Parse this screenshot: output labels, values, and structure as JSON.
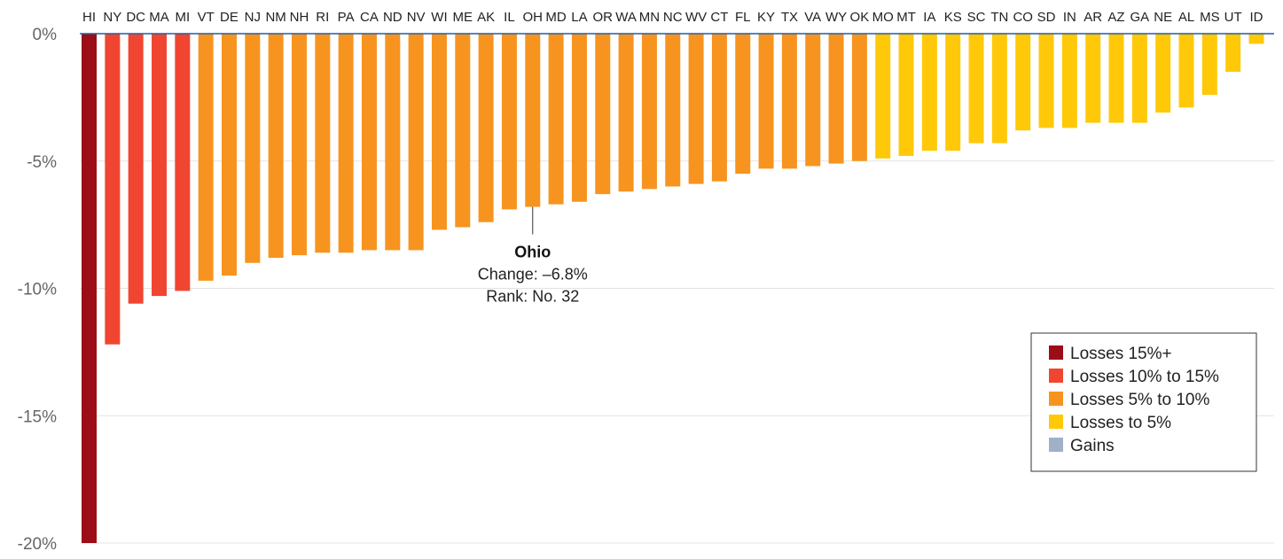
{
  "chart_data": {
    "type": "bar",
    "categories": [
      "HI",
      "NY",
      "DC",
      "MA",
      "MI",
      "VT",
      "DE",
      "NJ",
      "NM",
      "NH",
      "RI",
      "PA",
      "CA",
      "ND",
      "NV",
      "WI",
      "ME",
      "AK",
      "IL",
      "OH",
      "MD",
      "LA",
      "OR",
      "WA",
      "MN",
      "NC",
      "WV",
      "CT",
      "FL",
      "KY",
      "TX",
      "VA",
      "WY",
      "OK",
      "MO",
      "MT",
      "IA",
      "KS",
      "SC",
      "TN",
      "CO",
      "SD",
      "IN",
      "AR",
      "AZ",
      "GA",
      "NE",
      "AL",
      "MS",
      "UT",
      "ID"
    ],
    "values": [
      -20.0,
      -12.2,
      -10.6,
      -10.3,
      -10.1,
      -9.7,
      -9.5,
      -9.0,
      -8.8,
      -8.7,
      -8.6,
      -8.6,
      -8.5,
      -8.5,
      -8.5,
      -7.7,
      -7.6,
      -7.4,
      -6.9,
      -6.8,
      -6.7,
      -6.6,
      -6.3,
      -6.2,
      -6.1,
      -6.0,
      -5.9,
      -5.8,
      -5.5,
      -5.3,
      -5.3,
      -5.2,
      -5.1,
      -5.0,
      -4.9,
      -4.8,
      -4.6,
      -4.6,
      -4.3,
      -4.3,
      -3.8,
      -3.7,
      -3.7,
      -3.5,
      -3.5,
      -3.5,
      -3.1,
      -2.9,
      -2.4,
      -1.5,
      -0.4
    ],
    "bins": [
      "Losses 15%+",
      "Losses 10% to 15%",
      "Losses 10% to 15%",
      "Losses 10% to 15%",
      "Losses 10% to 15%",
      "Losses 5% to 10%",
      "Losses 5% to 10%",
      "Losses 5% to 10%",
      "Losses 5% to 10%",
      "Losses 5% to 10%",
      "Losses 5% to 10%",
      "Losses 5% to 10%",
      "Losses 5% to 10%",
      "Losses 5% to 10%",
      "Losses 5% to 10%",
      "Losses 5% to 10%",
      "Losses 5% to 10%",
      "Losses 5% to 10%",
      "Losses 5% to 10%",
      "Losses 5% to 10%",
      "Losses 5% to 10%",
      "Losses 5% to 10%",
      "Losses 5% to 10%",
      "Losses 5% to 10%",
      "Losses 5% to 10%",
      "Losses 5% to 10%",
      "Losses 5% to 10%",
      "Losses 5% to 10%",
      "Losses 5% to 10%",
      "Losses 5% to 10%",
      "Losses 5% to 10%",
      "Losses 5% to 10%",
      "Losses 5% to 10%",
      "Losses 5% to 10%",
      "Losses to 5%",
      "Losses to 5%",
      "Losses to 5%",
      "Losses to 5%",
      "Losses to 5%",
      "Losses to 5%",
      "Losses to 5%",
      "Losses to 5%",
      "Losses to 5%",
      "Losses to 5%",
      "Losses to 5%",
      "Losses to 5%",
      "Losses to 5%",
      "Losses to 5%",
      "Losses to 5%",
      "Losses to 5%",
      "Losses to 5%"
    ],
    "ylim": [
      -20,
      0
    ],
    "y_ticks": [
      0,
      -5,
      -10,
      -15,
      -20
    ],
    "y_tick_labels": [
      "0%",
      "-5%",
      "-10%",
      "-15%",
      "-20%"
    ],
    "grid": true,
    "title": "",
    "xlabel": "",
    "ylabel": "",
    "legend_position": "bottom-right",
    "legend": [
      {
        "label": "Losses 15%+",
        "color": "#9b0e17"
      },
      {
        "label": "Losses 10% to 15%",
        "color": "#f04631"
      },
      {
        "label": "Losses 5% to 10%",
        "color": "#f7941f"
      },
      {
        "label": "Losses to 5%",
        "color": "#ffc90a"
      },
      {
        "label": "Gains",
        "color": "#9fb0c7"
      }
    ],
    "annotation": {
      "category": "OH",
      "title": "Ohio",
      "line1": "Change: –6.8%",
      "line2": "Rank: No. 32"
    }
  }
}
